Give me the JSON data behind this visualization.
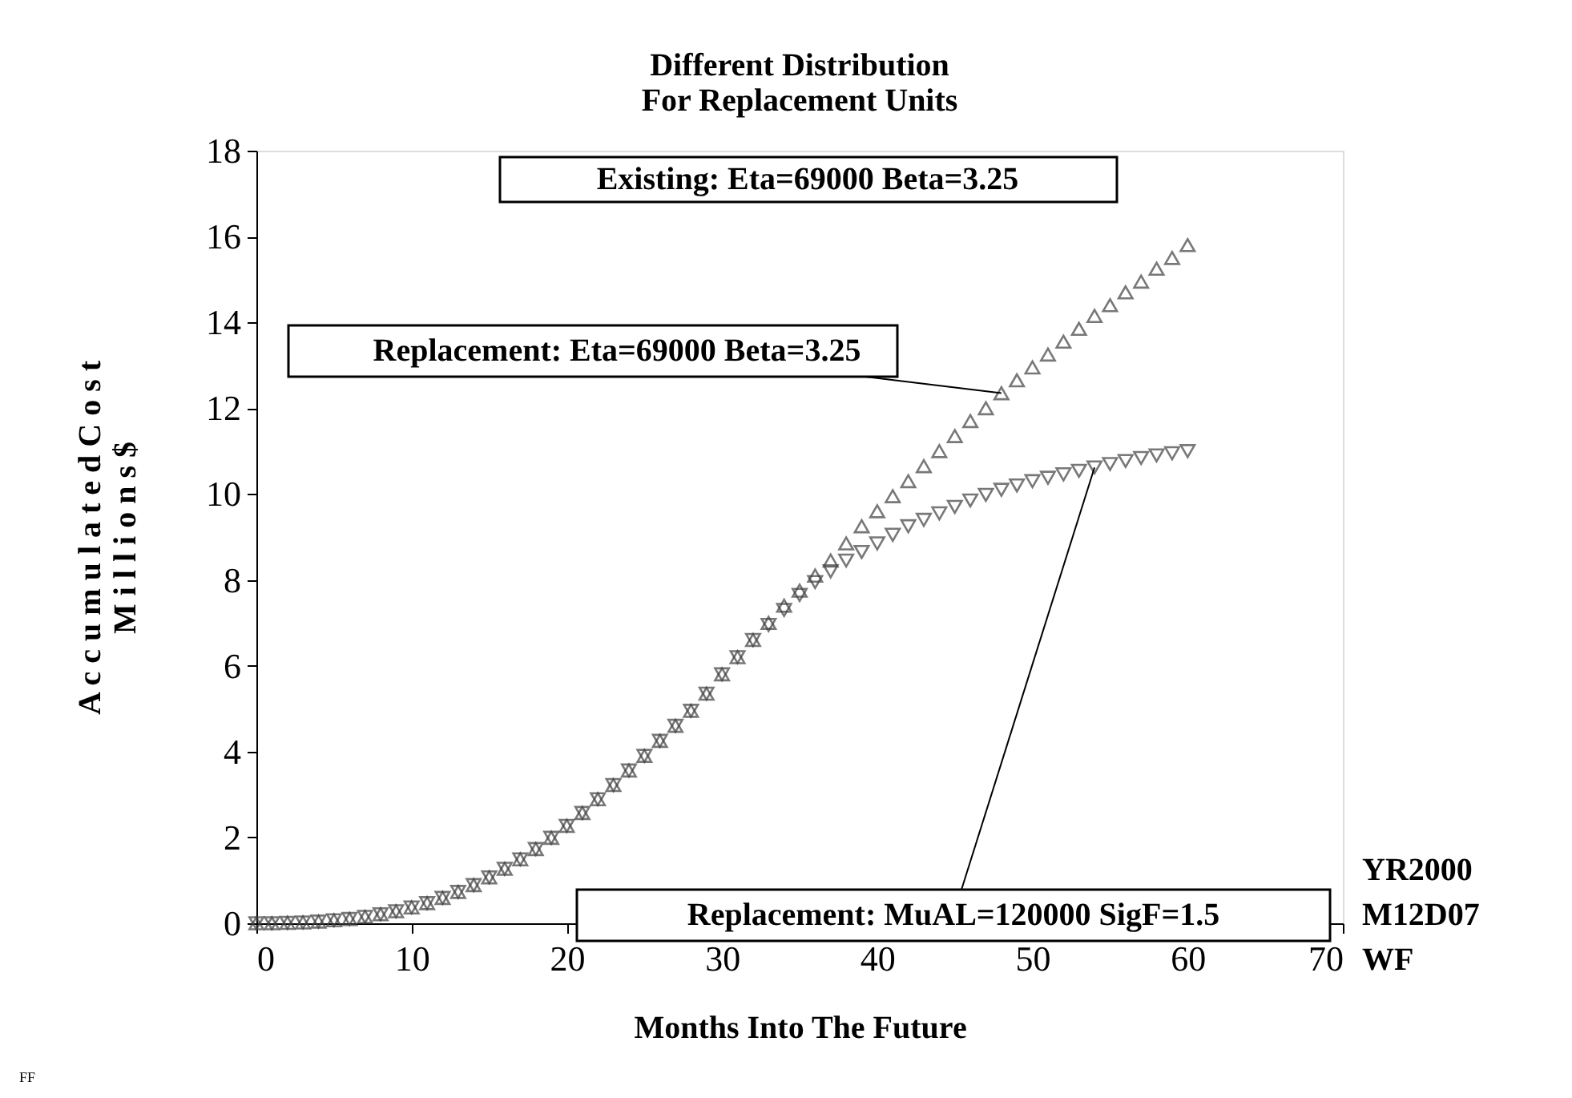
{
  "chart_data": {
    "type": "scatter",
    "title": "Different Distribution\nFor Replacement Units",
    "xlabel": "Months Into The Future",
    "ylabel": "A c c u m u l a t e d   C o s t\nM i l l i o n s   $",
    "x": [
      0,
      1,
      2,
      3,
      4,
      5,
      6,
      7,
      8,
      9,
      10,
      11,
      12,
      13,
      14,
      15,
      16,
      17,
      18,
      19,
      20,
      21,
      22,
      23,
      24,
      25,
      26,
      27,
      28,
      29,
      30,
      31,
      32,
      33,
      34,
      35,
      36,
      37,
      38,
      39,
      40,
      41,
      42,
      43,
      44,
      45,
      46,
      47,
      48,
      49,
      50,
      51,
      52,
      53,
      54,
      55,
      56,
      57,
      58,
      59,
      60
    ],
    "series": [
      {
        "color": "#404040",
        "marker": "triangle",
        "values": [
          0,
          0,
          0.01,
          0.02,
          0.04,
          0.07,
          0.1,
          0.15,
          0.21,
          0.28,
          0.37,
          0.47,
          0.59,
          0.73,
          0.89,
          1.07,
          1.27,
          1.49,
          1.73,
          1.99,
          2.27,
          2.57,
          2.89,
          3.22,
          3.56,
          3.9,
          4.25,
          4.6,
          4.95,
          5.35,
          5.8,
          6.2,
          6.6,
          7.0,
          7.4,
          7.75,
          8.1,
          8.45,
          8.85,
          9.25,
          9.6,
          9.95,
          10.3,
          10.65,
          11.0,
          11.35,
          11.7,
          12.0,
          12.35,
          12.65,
          12.95,
          13.25,
          13.55,
          13.85,
          14.15,
          14.4,
          14.7,
          14.95,
          15.25,
          15.5,
          15.8
        ]
      },
      {
        "color": "#404040",
        "marker": "triangle-down",
        "values": [
          0,
          0,
          0.01,
          0.02,
          0.04,
          0.07,
          0.1,
          0.15,
          0.21,
          0.28,
          0.37,
          0.47,
          0.59,
          0.73,
          0.89,
          1.07,
          1.27,
          1.49,
          1.73,
          1.99,
          2.27,
          2.57,
          2.89,
          3.22,
          3.56,
          3.9,
          4.25,
          4.6,
          4.95,
          5.35,
          5.8,
          6.2,
          6.6,
          6.95,
          7.3,
          7.65,
          7.95,
          8.2,
          8.45,
          8.65,
          8.85,
          9.05,
          9.25,
          9.4,
          9.55,
          9.7,
          9.85,
          9.98,
          10.1,
          10.2,
          10.3,
          10.38,
          10.46,
          10.54,
          10.62,
          10.7,
          10.77,
          10.84,
          10.9,
          10.95,
          11.0
        ]
      }
    ],
    "xlim": [
      0,
      70
    ],
    "xticks": [
      0,
      10,
      20,
      30,
      40,
      50,
      60,
      70
    ],
    "ylim": [
      0,
      18
    ],
    "yticks": [
      0,
      2,
      4,
      6,
      8,
      10,
      12,
      14,
      16,
      18
    ],
    "grid": false,
    "annotations": [
      "Existing: Eta=69000 Beta=3.25",
      {
        "text": "Replacement: Eta=69000 Beta=3.25",
        "x": 48,
        "y": 12.35
      },
      {
        "text": "Replacement: MuAL=120000 SigF=1.5",
        "x": 54,
        "y": 10.62
      },
      "YR2000",
      "M12D07",
      "WF",
      "FF"
    ]
  }
}
